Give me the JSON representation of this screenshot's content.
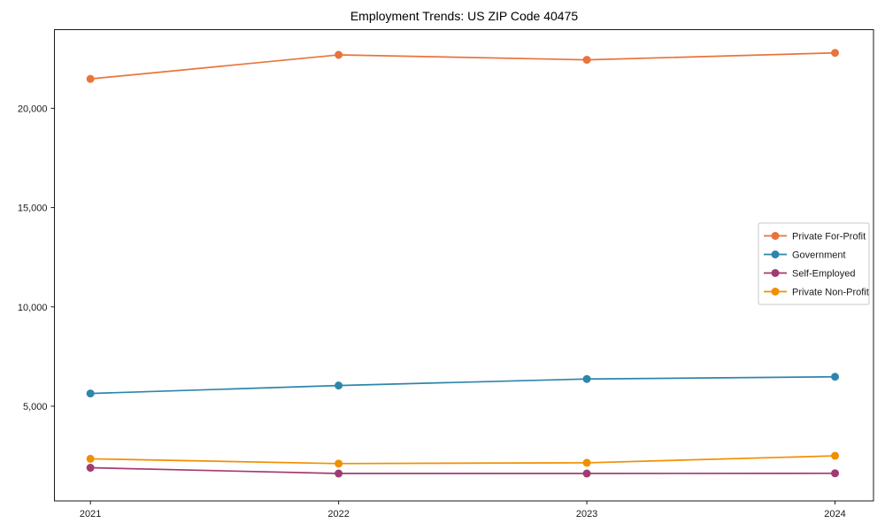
{
  "page": {
    "background": "#ffffff"
  },
  "chart_data": {
    "type": "line",
    "title": "Employment Trends: US ZIP Code 40475",
    "xlabel": "",
    "ylabel": "",
    "x": [
      2021,
      2022,
      2023,
      2024
    ],
    "x_tick_labels": [
      "2021",
      "2022",
      "2023",
      "2024"
    ],
    "yticks": [
      5000,
      10000,
      15000,
      20000
    ],
    "ytick_labels": [
      "5,000",
      "10,000",
      "15,000",
      "20,000"
    ],
    "xlim": [
      2020.855,
      2024.155
    ],
    "ylim": [
      230,
      23960
    ],
    "grid": false,
    "legend_position": "center-right",
    "frame_color": "#1a1a1a",
    "text_color": "#1a1a1a",
    "legend_border_color": "#c8c8c8",
    "series": [
      {
        "name": "Private For-Profit",
        "color": "#e8743b",
        "marker": "circle",
        "values": [
          21480,
          22690,
          22440,
          22790
        ]
      },
      {
        "name": "Government",
        "color": "#2e86ab",
        "marker": "circle",
        "values": [
          5640,
          6040,
          6370,
          6480
        ]
      },
      {
        "name": "Self-Employed",
        "color": "#a23b72",
        "marker": "circle",
        "values": [
          1900,
          1610,
          1610,
          1620
        ]
      },
      {
        "name": "Private Non-Profit",
        "color": "#f18f01",
        "marker": "circle",
        "values": [
          2350,
          2110,
          2150,
          2500
        ]
      }
    ]
  }
}
